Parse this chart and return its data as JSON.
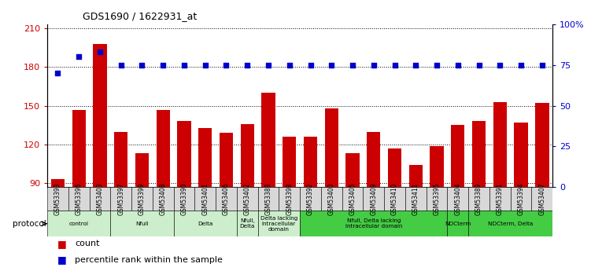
{
  "title": "GDS1690 / 1622931_at",
  "samples": [
    "GSM53393",
    "GSM53396",
    "GSM53403",
    "GSM53397",
    "GSM53399",
    "GSM53408",
    "GSM53390",
    "GSM53401",
    "GSM53406",
    "GSM53402",
    "GSM53388",
    "GSM53398",
    "GSM53392",
    "GSM53400",
    "GSM53405",
    "GSM53409",
    "GSM53410",
    "GSM53411",
    "GSM53395",
    "GSM53404",
    "GSM53389",
    "GSM53391",
    "GSM53394",
    "GSM53407"
  ],
  "counts": [
    93,
    147,
    198,
    130,
    113,
    147,
    138,
    133,
    129,
    136,
    160,
    126,
    126,
    148,
    113,
    130,
    117,
    104,
    119,
    135,
    138,
    153,
    137,
    152
  ],
  "percentiles": [
    70,
    80,
    83,
    75,
    75,
    75,
    75,
    75,
    75,
    75,
    75,
    75,
    75,
    75,
    75,
    75,
    75,
    75,
    75,
    75,
    75,
    75,
    75,
    75
  ],
  "bar_color": "#cc0000",
  "dot_color": "#0000cc",
  "ylim_left": [
    87,
    213
  ],
  "ylim_right": [
    0,
    100
  ],
  "yticks_left": [
    90,
    120,
    150,
    180,
    210
  ],
  "yticks_right": [
    0,
    25,
    50,
    75,
    100
  ],
  "ytick_labels_right": [
    "0",
    "25",
    "50",
    "75",
    "100%"
  ],
  "groups": [
    {
      "label": "control",
      "start": 0,
      "end": 2,
      "color": "#cceecc"
    },
    {
      "label": "Nfull",
      "start": 3,
      "end": 5,
      "color": "#cceecc"
    },
    {
      "label": "Delta",
      "start": 6,
      "end": 8,
      "color": "#cceecc"
    },
    {
      "label": "Nfull,\nDelta",
      "start": 9,
      "end": 9,
      "color": "#cceecc"
    },
    {
      "label": "Delta lacking\nintracellular\ndomain",
      "start": 10,
      "end": 11,
      "color": "#cceecc"
    },
    {
      "label": "Nfull, Delta lacking\nintracellular domain",
      "start": 12,
      "end": 18,
      "color": "#44cc44"
    },
    {
      "label": "NDCterm",
      "start": 19,
      "end": 19,
      "color": "#44cc44"
    },
    {
      "label": "NDCterm, Delta",
      "start": 20,
      "end": 23,
      "color": "#44cc44"
    }
  ],
  "protocol_label": "protocol",
  "legend_count_label": "count",
  "legend_pct_label": "percentile rank within the sample"
}
